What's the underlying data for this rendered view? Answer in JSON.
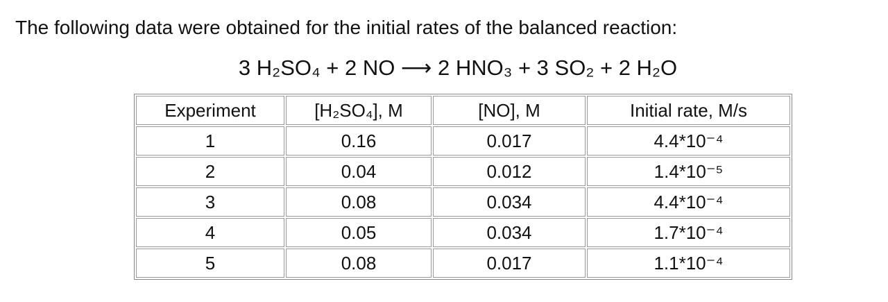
{
  "header": {
    "title": "The following data were obtained for the initial rates of the balanced reaction:",
    "equation": "3 H₂SO₄ + 2 NO ⟶ 2 HNO₃ + 3 SO₂ + 2 H₂O"
  },
  "table": {
    "columns": [
      "Experiment",
      "[H₂SO₄], M",
      "[NO], M",
      "Initial rate, M/s"
    ],
    "rows": [
      [
        "1",
        "0.16",
        "0.017",
        "4.4*10⁻⁴"
      ],
      [
        "2",
        "0.04",
        "0.012",
        "1.4*10⁻⁵"
      ],
      [
        "3",
        "0.08",
        "0.034",
        "4.4*10⁻⁴"
      ],
      [
        "4",
        "0.05",
        "0.034",
        "1.7*10⁻⁴"
      ],
      [
        "5",
        "0.08",
        "0.017",
        "1.1*10⁻⁴"
      ]
    ]
  }
}
